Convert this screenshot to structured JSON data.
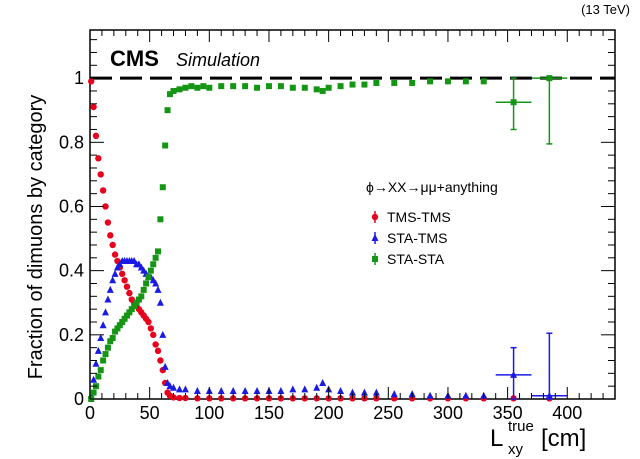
{
  "chart_data": {
    "type": "scatter",
    "energy_label": "(13 TeV)",
    "experiment": "CMS",
    "experiment_sub": "Simulation",
    "process_label": "ϕ→XX→μμ+anything",
    "xlabel_main": "L",
    "xlabel_sup": "true",
    "xlabel_sub": "xy",
    "xlabel_unit": "[cm]",
    "ylabel": "Fraction of dimuons by category",
    "xlim": [
      0,
      440
    ],
    "ylim": [
      0,
      1.15
    ],
    "x_ticks": [
      0,
      50,
      100,
      150,
      200,
      250,
      300,
      350,
      400
    ],
    "y_ticks": [
      0,
      0.2,
      0.4,
      0.6,
      0.8,
      1
    ],
    "y_tick_labels": [
      "0",
      "0.2",
      "0.4",
      "0.6",
      "0.8",
      "1"
    ],
    "reference_line": 1,
    "legend_position": "right",
    "series": [
      {
        "name": "TMS-TMS",
        "color": "#e8001c",
        "marker": "circle",
        "points": [
          [
            1,
            0.99
          ],
          [
            3,
            0.91
          ],
          [
            5,
            0.82
          ],
          [
            7,
            0.75
          ],
          [
            9,
            0.7
          ],
          [
            11,
            0.65
          ],
          [
            13,
            0.6
          ],
          [
            15,
            0.55
          ],
          [
            17,
            0.51
          ],
          [
            19,
            0.48
          ],
          [
            21,
            0.45
          ],
          [
            23,
            0.43
          ],
          [
            25,
            0.41
          ],
          [
            27,
            0.39
          ],
          [
            29,
            0.37
          ],
          [
            31,
            0.35
          ],
          [
            33,
            0.33
          ],
          [
            35,
            0.31
          ],
          [
            37,
            0.3
          ],
          [
            39,
            0.29
          ],
          [
            41,
            0.28
          ],
          [
            43,
            0.27
          ],
          [
            45,
            0.26
          ],
          [
            47,
            0.25
          ],
          [
            49,
            0.24
          ],
          [
            51,
            0.22
          ],
          [
            53,
            0.2
          ],
          [
            55,
            0.17
          ],
          [
            57,
            0.15
          ],
          [
            59,
            0.12
          ],
          [
            61,
            0.09
          ],
          [
            63,
            0.05
          ],
          [
            65,
            0.02
          ],
          [
            67,
            0.01
          ],
          [
            70,
            0.005
          ],
          [
            75,
            0.003
          ],
          [
            80,
            0.003
          ],
          [
            90,
            0.002
          ],
          [
            100,
            0.002
          ],
          [
            110,
            0.002
          ],
          [
            120,
            0.002
          ],
          [
            130,
            0.002
          ],
          [
            140,
            0.002
          ],
          [
            150,
            0.002
          ],
          [
            160,
            0.002
          ],
          [
            170,
            0.002
          ],
          [
            180,
            0.002
          ],
          [
            190,
            0.002
          ],
          [
            200,
            0.002
          ],
          [
            210,
            0.002
          ],
          [
            220,
            0.002
          ],
          [
            230,
            0.002
          ],
          [
            240,
            0.002
          ],
          [
            255,
            0.002
          ],
          [
            270,
            0.002
          ],
          [
            285,
            0.002
          ],
          [
            300,
            0.002
          ],
          [
            315,
            0.002
          ],
          [
            330,
            0.002
          ],
          [
            355,
            0.002
          ],
          [
            385,
            0.002
          ]
        ],
        "error_bars": []
      },
      {
        "name": "STA-TMS",
        "color": "#1a1ae6",
        "marker": "triangle",
        "points": [
          [
            1,
            0.01
          ],
          [
            3,
            0.06
          ],
          [
            5,
            0.11
          ],
          [
            7,
            0.15
          ],
          [
            9,
            0.19
          ],
          [
            11,
            0.23
          ],
          [
            13,
            0.27
          ],
          [
            15,
            0.31
          ],
          [
            17,
            0.34
          ],
          [
            19,
            0.37
          ],
          [
            21,
            0.39
          ],
          [
            23,
            0.41
          ],
          [
            25,
            0.42
          ],
          [
            27,
            0.43
          ],
          [
            29,
            0.43
          ],
          [
            31,
            0.43
          ],
          [
            33,
            0.43
          ],
          [
            35,
            0.43
          ],
          [
            37,
            0.43
          ],
          [
            39,
            0.42
          ],
          [
            41,
            0.42
          ],
          [
            43,
            0.41
          ],
          [
            45,
            0.4
          ],
          [
            47,
            0.39
          ],
          [
            49,
            0.38
          ],
          [
            51,
            0.38
          ],
          [
            53,
            0.37
          ],
          [
            55,
            0.36
          ],
          [
            57,
            0.34
          ],
          [
            59,
            0.3
          ],
          [
            61,
            0.2
          ],
          [
            63,
            0.1
          ],
          [
            65,
            0.05
          ],
          [
            67,
            0.04
          ],
          [
            70,
            0.035
          ],
          [
            75,
            0.03
          ],
          [
            80,
            0.03
          ],
          [
            90,
            0.025
          ],
          [
            100,
            0.025
          ],
          [
            110,
            0.025
          ],
          [
            120,
            0.025
          ],
          [
            130,
            0.025
          ],
          [
            140,
            0.025
          ],
          [
            150,
            0.025
          ],
          [
            160,
            0.025
          ],
          [
            170,
            0.03
          ],
          [
            180,
            0.03
          ],
          [
            190,
            0.035
          ],
          [
            195,
            0.05
          ],
          [
            200,
            0.03
          ],
          [
            210,
            0.025
          ],
          [
            220,
            0.02
          ],
          [
            230,
            0.02
          ],
          [
            240,
            0.02
          ],
          [
            255,
            0.015
          ],
          [
            270,
            0.015
          ],
          [
            285,
            0.01
          ],
          [
            300,
            0.01
          ],
          [
            315,
            0.01
          ],
          [
            330,
            0.01
          ],
          [
            355,
            0.075
          ],
          [
            385,
            0.01
          ]
        ],
        "error_bars": [
          {
            "x": 355,
            "y": 0.075,
            "ylow": 0.0,
            "yhigh": 0.16,
            "xlow": 340,
            "xhigh": 370
          },
          {
            "x": 385,
            "y": 0.01,
            "ylow": 0.0,
            "yhigh": 0.205,
            "xlow": 370,
            "xhigh": 400
          }
        ]
      },
      {
        "name": "STA-STA",
        "color": "#149614",
        "marker": "square",
        "points": [
          [
            1,
            0.0
          ],
          [
            3,
            0.02
          ],
          [
            5,
            0.04
          ],
          [
            7,
            0.07
          ],
          [
            9,
            0.09
          ],
          [
            11,
            0.12
          ],
          [
            13,
            0.14
          ],
          [
            15,
            0.16
          ],
          [
            17,
            0.18
          ],
          [
            19,
            0.19
          ],
          [
            21,
            0.21
          ],
          [
            23,
            0.22
          ],
          [
            25,
            0.23
          ],
          [
            27,
            0.24
          ],
          [
            29,
            0.25
          ],
          [
            31,
            0.26
          ],
          [
            33,
            0.27
          ],
          [
            35,
            0.28
          ],
          [
            37,
            0.29
          ],
          [
            39,
            0.3
          ],
          [
            41,
            0.31
          ],
          [
            43,
            0.32
          ],
          [
            45,
            0.34
          ],
          [
            47,
            0.36
          ],
          [
            49,
            0.38
          ],
          [
            51,
            0.4
          ],
          [
            53,
            0.42
          ],
          [
            55,
            0.44
          ],
          [
            57,
            0.46
          ],
          [
            59,
            0.56
          ],
          [
            61,
            0.66
          ],
          [
            63,
            0.79
          ],
          [
            65,
            0.9
          ],
          [
            67,
            0.95
          ],
          [
            70,
            0.96
          ],
          [
            75,
            0.965
          ],
          [
            80,
            0.97
          ],
          [
            85,
            0.975
          ],
          [
            90,
            0.97
          ],
          [
            95,
            0.975
          ],
          [
            100,
            0.97
          ],
          [
            110,
            0.975
          ],
          [
            120,
            0.975
          ],
          [
            130,
            0.975
          ],
          [
            140,
            0.97
          ],
          [
            150,
            0.975
          ],
          [
            160,
            0.975
          ],
          [
            170,
            0.97
          ],
          [
            180,
            0.97
          ],
          [
            190,
            0.965
          ],
          [
            195,
            0.96
          ],
          [
            200,
            0.97
          ],
          [
            210,
            0.975
          ],
          [
            220,
            0.98
          ],
          [
            230,
            0.98
          ],
          [
            240,
            0.985
          ],
          [
            255,
            0.985
          ],
          [
            270,
            0.985
          ],
          [
            285,
            0.99
          ],
          [
            300,
            0.99
          ],
          [
            315,
            0.99
          ],
          [
            330,
            0.99
          ],
          [
            355,
            0.925
          ],
          [
            385,
            1.0
          ]
        ],
        "error_bars": [
          {
            "x": 355,
            "y": 0.925,
            "ylow": 0.84,
            "yhigh": 1.0,
            "xlow": 340,
            "xhigh": 370
          },
          {
            "x": 385,
            "y": 1.0,
            "ylow": 0.795,
            "yhigh": 1.0,
            "xlow": 370,
            "xhigh": 400
          }
        ]
      }
    ]
  }
}
